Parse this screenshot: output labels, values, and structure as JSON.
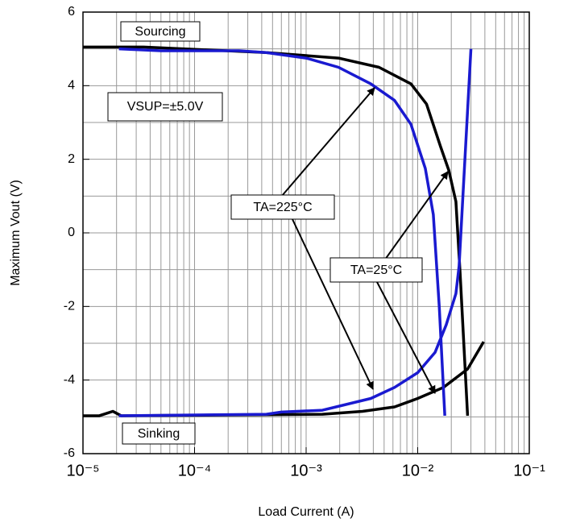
{
  "chart_data": {
    "type": "line",
    "x_label": "Load Current (A)",
    "y_label": "Maximum Vout (V)",
    "xlog": true,
    "grid": true,
    "xlim": [
      1e-05,
      0.1
    ],
    "ylim": [
      -6,
      6
    ],
    "xticks": [
      {
        "value": 1e-05,
        "label": "10⁻⁵"
      },
      {
        "value": 0.0001,
        "label": "10⁻⁴"
      },
      {
        "value": 0.001,
        "label": "10⁻³"
      },
      {
        "value": 0.01,
        "label": "10⁻²"
      },
      {
        "value": 0.1,
        "label": "10⁻¹"
      }
    ],
    "yticks": [
      -6,
      -4,
      -2,
      0,
      2,
      4,
      6
    ],
    "annotations": [
      "Sourcing",
      "VSUP=±5.0V",
      "TA=225°C",
      "TA=25°C",
      "Sinking"
    ],
    "series": [
      {
        "color": "#000000",
        "x": [
          1e-05,
          3.5e-05,
          0.00044,
          0.00195,
          0.0045,
          0.0087,
          0.012,
          0.016,
          0.019,
          0.022,
          0.024,
          0.028
        ],
        "values": [
          5.05,
          5.05,
          4.9,
          4.75,
          4.5,
          4.05,
          3.5,
          2.35,
          1.7,
          0.85,
          -1.1,
          -4.97
        ]
      },
      {
        "color": "#000000",
        "x": [
          1e-05,
          1.4e-05,
          1.85e-05,
          2.2e-05,
          0.0014,
          0.0032,
          0.0062,
          0.01,
          0.017,
          0.028,
          0.039
        ],
        "values": [
          -4.97,
          -4.97,
          -4.85,
          -4.97,
          -4.93,
          -4.85,
          -4.73,
          -4.5,
          -4.2,
          -3.7,
          -2.96
        ]
      },
      {
        "color": "#1a1ad0",
        "x": [
          2.1e-05,
          5e-05,
          0.00025,
          0.00044,
          0.001,
          0.00195,
          0.0038,
          0.0062,
          0.0087,
          0.0117,
          0.0138,
          0.0156,
          0.0175
        ],
        "values": [
          5.0,
          4.95,
          4.95,
          4.9,
          4.75,
          4.5,
          4.05,
          3.6,
          2.95,
          1.75,
          0.5,
          -2.0,
          -4.97
        ]
      },
      {
        "color": "#1a1ad0",
        "x": [
          2.1e-05,
          0.00044,
          0.0006,
          0.0014,
          0.0038,
          0.0062,
          0.01,
          0.0143,
          0.018,
          0.022,
          0.0235,
          0.03
        ],
        "values": [
          -4.97,
          -4.93,
          -4.87,
          -4.82,
          -4.5,
          -4.2,
          -3.8,
          -3.25,
          -2.5,
          -1.65,
          -0.9,
          5.0
        ]
      }
    ]
  }
}
